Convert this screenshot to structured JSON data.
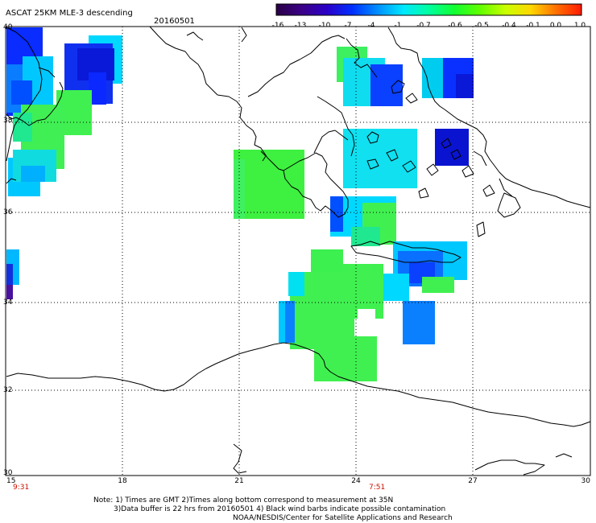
{
  "header": {
    "title": "ASCAT 25KM MLE-3 descending",
    "date": "20160501"
  },
  "colorbar": {
    "labels": [
      "-16",
      "-13",
      "-10",
      "-7",
      "-4",
      "-1",
      "-0.7",
      "-0.6",
      "-0.5",
      "-0.4",
      "-0.1",
      "0.0",
      "1.0"
    ],
    "colors": [
      "#2a0046",
      "#3a0086",
      "#2a00c8",
      "#0030ff",
      "#0090ff",
      "#00e8ff",
      "#00ffa0",
      "#10ff30",
      "#60ff00",
      "#c8ff00",
      "#ffd800",
      "#ff7000",
      "#ff1a00"
    ]
  },
  "axes": {
    "lon_labels": [
      "15",
      "18",
      "21",
      "24",
      "27",
      "30"
    ],
    "lat_labels": [
      "40",
      "38",
      "36",
      "34",
      "32",
      "30"
    ]
  },
  "times": {
    "left": "9:31",
    "right": "7:51"
  },
  "notes": {
    "line1": "Note: 1) Times are GMT 2)Times along bottom correspond to measurement at 35N",
    "line2": "3)Data buffer is 22 hrs from 20160501 4) Black wind barbs indicate possible contamination",
    "line3": "NOAA/NESDIS/Center for Satellite Applications and Research"
  }
}
